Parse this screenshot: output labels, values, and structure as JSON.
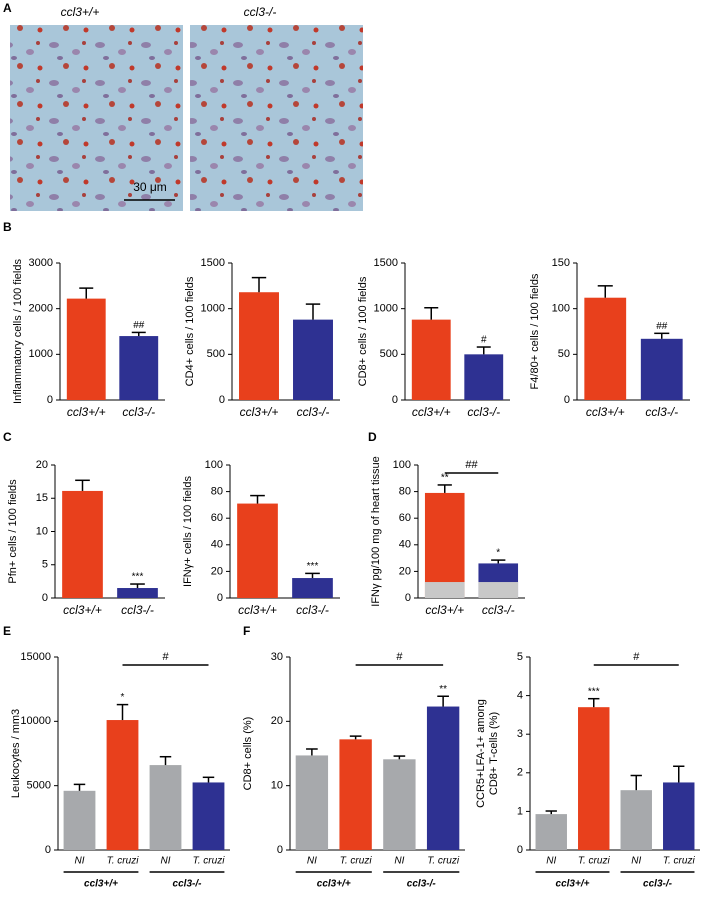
{
  "panel_a": {
    "label": "A",
    "images": [
      {
        "caption": "ccl3+/+"
      },
      {
        "caption": "ccl3-/-"
      }
    ],
    "scale_bar": "30 μm"
  },
  "chart_data": [
    {
      "type": "bar",
      "panel": "B",
      "ylabel": [
        "Inflammatory cells / 100 fields"
      ],
      "categories": [
        "ccl3+/+",
        "ccl3-/-"
      ],
      "values": [
        2220,
        1400
      ],
      "errors": [
        230,
        80
      ],
      "colors": [
        "#e8401c",
        "#2e3192"
      ],
      "significance": [
        null,
        "##"
      ],
      "ylim": [
        0,
        3000
      ],
      "yticks": [
        0,
        1000,
        2000,
        3000
      ]
    },
    {
      "type": "bar",
      "ylabel": [
        "CD4+ cells / 100 fields"
      ],
      "categories": [
        "ccl3+/+",
        "ccl3-/-"
      ],
      "values": [
        1180,
        880
      ],
      "errors": [
        160,
        170
      ],
      "colors": [
        "#e8401c",
        "#2e3192"
      ],
      "ylim": [
        0,
        1500
      ],
      "yticks": [
        0,
        500,
        1000,
        1500
      ]
    },
    {
      "type": "bar",
      "ylabel": [
        "CD8+ cells / 100 fields"
      ],
      "categories": [
        "ccl3+/+",
        "ccl3-/-"
      ],
      "values": [
        880,
        500
      ],
      "errors": [
        130,
        80
      ],
      "colors": [
        "#e8401c",
        "#2e3192"
      ],
      "significance": [
        null,
        "#"
      ],
      "ylim": [
        0,
        1500
      ],
      "yticks": [
        0,
        500,
        1000,
        1500
      ]
    },
    {
      "type": "bar",
      "ylabel": [
        "F4/80+ cells / 100 fields"
      ],
      "categories": [
        "ccl3+/+",
        "ccl3-/-"
      ],
      "values": [
        112,
        67
      ],
      "errors": [
        13,
        6
      ],
      "colors": [
        "#e8401c",
        "#2e3192"
      ],
      "significance": [
        null,
        "##"
      ],
      "ylim": [
        0,
        150
      ],
      "yticks": [
        0,
        50,
        100,
        150
      ]
    },
    {
      "type": "bar",
      "panel": "C",
      "ylabel": [
        "Pfn+ cells / 100 fields"
      ],
      "categories": [
        "ccl3+/+",
        "ccl3-/-"
      ],
      "values": [
        16.1,
        1.5
      ],
      "errors": [
        1.6,
        0.6
      ],
      "colors": [
        "#e8401c",
        "#2e3192"
      ],
      "significance": [
        null,
        "***"
      ],
      "ylim": [
        0,
        20
      ],
      "yticks": [
        0,
        5,
        10,
        15,
        20
      ]
    },
    {
      "type": "bar",
      "ylabel": [
        "IFNγ+ cells / 100 fields"
      ],
      "categories": [
        "ccl3+/+",
        "ccl3-/-"
      ],
      "values": [
        71,
        15
      ],
      "errors": [
        6,
        3.5
      ],
      "colors": [
        "#e8401c",
        "#2e3192"
      ],
      "significance": [
        null,
        "***"
      ],
      "ylim": [
        0,
        100
      ],
      "yticks": [
        0,
        20,
        40,
        60,
        80,
        100
      ]
    },
    {
      "type": "bar",
      "panel": "D",
      "ylabel": [
        "IFNγ pg/100 mg of heart tissue"
      ],
      "categories": [
        "ccl3+/+",
        "ccl3-/-"
      ],
      "values": [
        79,
        26
      ],
      "errors": [
        6,
        2.5
      ],
      "colors": [
        "#e8401c",
        "#2e3192"
      ],
      "reference_values": [
        12,
        12
      ],
      "reference_color": "#c8c8c8",
      "significance": [
        "**",
        "*"
      ],
      "bracket": {
        "label": "##",
        "between": [
          0,
          1
        ]
      },
      "ylim": [
        0,
        100
      ],
      "yticks": [
        0,
        20,
        40,
        60,
        80,
        100
      ]
    },
    {
      "type": "bar",
      "panel": "E",
      "ylabel": [
        "Leukocytes / mm3"
      ],
      "categories": [
        "NI",
        "T. cruzi",
        "NI",
        "T. cruzi"
      ],
      "groups": [
        "ccl3+/+",
        "ccl3-/-"
      ],
      "values": [
        4600,
        10100,
        6600,
        5250
      ],
      "errors": [
        500,
        1200,
        650,
        400
      ],
      "colors": [
        "#a7a9ac",
        "#e8401c",
        "#a7a9ac",
        "#2e3192"
      ],
      "significance": [
        null,
        "*",
        null,
        null
      ],
      "bracket": {
        "label": "#",
        "between": [
          1,
          3
        ]
      },
      "ylim": [
        0,
        15000
      ],
      "yticks": [
        0,
        5000,
        10000,
        15000
      ]
    },
    {
      "type": "bar",
      "panel": "F",
      "ylabel": [
        "CD8+ cells (%)"
      ],
      "categories": [
        "NI",
        "T. cruzi",
        "NI",
        "T. cruzi"
      ],
      "groups": [
        "ccl3+/+",
        "ccl3-/-"
      ],
      "values": [
        14.7,
        17.2,
        14.1,
        22.3
      ],
      "errors": [
        1.0,
        0.5,
        0.5,
        1.6
      ],
      "colors": [
        "#a7a9ac",
        "#e8401c",
        "#a7a9ac",
        "#2e3192"
      ],
      "significance": [
        null,
        null,
        null,
        "**"
      ],
      "bracket": {
        "label": "#",
        "between": [
          1,
          3
        ]
      },
      "ylim": [
        0,
        30
      ],
      "yticks": [
        0,
        10,
        20,
        30
      ]
    },
    {
      "type": "bar",
      "ylabel": [
        "CCR5+LFA-1+ among",
        "CD8+ T-cells (%)"
      ],
      "categories": [
        "NI",
        "T. cruzi",
        "NI",
        "T. cruzi"
      ],
      "groups": [
        "ccl3+/+",
        "ccl3-/-"
      ],
      "values": [
        0.93,
        3.7,
        1.55,
        1.75
      ],
      "errors": [
        0.08,
        0.22,
        0.38,
        0.42
      ],
      "colors": [
        "#a7a9ac",
        "#e8401c",
        "#a7a9ac",
        "#2e3192"
      ],
      "significance": [
        null,
        "***",
        null,
        null
      ],
      "bracket": {
        "label": "#",
        "between": [
          1,
          3
        ]
      },
      "ylim": [
        0,
        5
      ],
      "yticks": [
        0,
        1,
        2,
        3,
        4,
        5
      ]
    }
  ]
}
